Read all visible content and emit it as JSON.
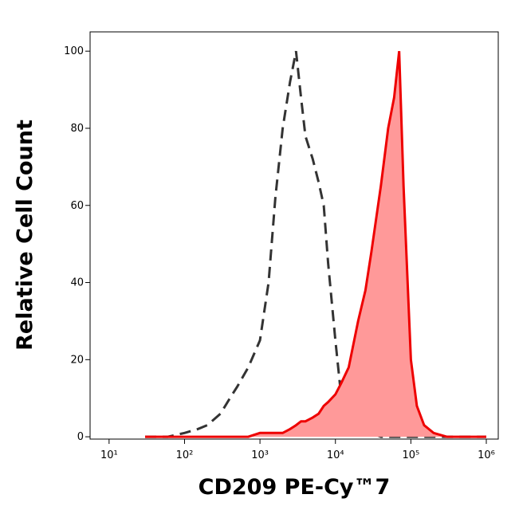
{
  "chart_data": {
    "type": "histogram-overlay",
    "xlabel": "CD209 PE-Cy™7",
    "ylabel": "Relative Cell Count",
    "xscale": "log",
    "xlim": [
      5.6,
      1440000
    ],
    "ylim": [
      -0.6,
      105
    ],
    "xticks": [
      {
        "value": 10,
        "label": "10¹"
      },
      {
        "value": 100,
        "label": "10²"
      },
      {
        "value": 1000,
        "label": "10³"
      },
      {
        "value": 10000,
        "label": "10⁴"
      },
      {
        "value": 100000,
        "label": "10⁵"
      },
      {
        "value": 1000000,
        "label": "10⁶"
      }
    ],
    "yticks": [
      0,
      20,
      40,
      60,
      80,
      100
    ],
    "x": [
      30,
      60,
      100,
      150,
      200,
      300,
      400,
      500,
      700,
      1000,
      1300,
      1600,
      2000,
      2500,
      3000,
      3500,
      4000,
      5000,
      6000,
      7000,
      8000,
      10000,
      12000,
      15000,
      20000,
      25000,
      30000,
      40000,
      50000,
      60000,
      70000,
      80000,
      100000,
      120000,
      150000,
      200000,
      300000,
      1000000
    ],
    "series": [
      {
        "style": "dashed",
        "color": "#333333",
        "values": [
          0,
          0,
          1,
          2,
          3,
          6,
          10,
          13,
          18,
          25,
          40,
          62,
          80,
          92,
          100,
          88,
          78,
          72,
          66,
          60,
          45,
          25,
          10,
          4,
          2,
          1,
          1,
          0,
          0,
          0,
          0,
          0,
          0,
          0,
          0,
          0,
          0,
          0
        ]
      },
      {
        "style": "filled",
        "color": "#ee0000",
        "fill": "#ff9999",
        "values": [
          0,
          0,
          0,
          0,
          0,
          0,
          0,
          0,
          0,
          1,
          1,
          1,
          1,
          2,
          3,
          4,
          4,
          5,
          6,
          8,
          9,
          11,
          14,
          18,
          30,
          38,
          48,
          65,
          80,
          88,
          100,
          65,
          20,
          8,
          3,
          1,
          0,
          0
        ]
      }
    ]
  }
}
